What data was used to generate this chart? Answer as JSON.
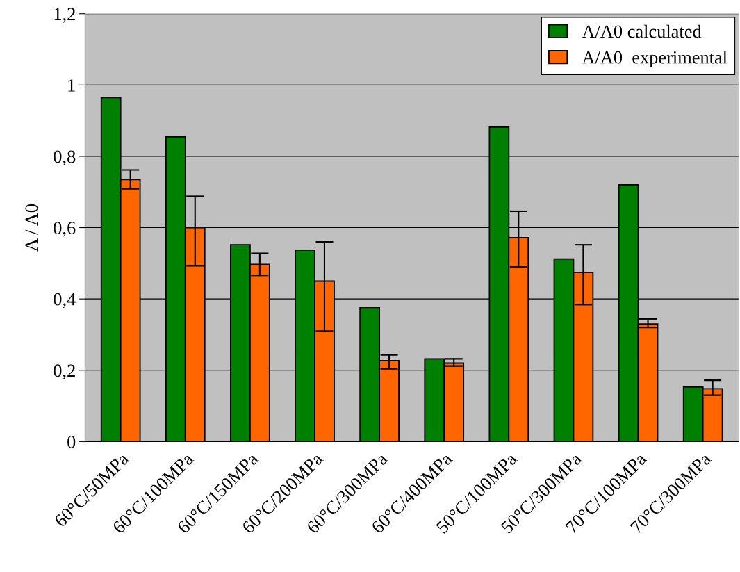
{
  "chart_data": {
    "type": "bar",
    "ylabel": "A / A0",
    "categories": [
      "60°C/50MPa",
      "60°C/100MPa",
      "60°C/150MPa",
      "60°C/200MPa",
      "60°C/300MPa",
      "60°C/400MPa",
      "50°C/100MPa",
      "50°C/300MPa",
      "70°C/100MPa",
      "70°C/300MPa"
    ],
    "series": [
      {
        "name": "A/A0 calculated",
        "color": "#008000",
        "values": [
          0.965,
          0.855,
          0.552,
          0.537,
          0.376,
          0.232,
          0.882,
          0.512,
          0.72,
          0.153
        ]
      },
      {
        "name": "A/A0  experimental",
        "color": "#ff6600",
        "values": [
          0.735,
          0.6,
          0.497,
          0.45,
          0.227,
          0.22,
          0.572,
          0.474,
          0.33,
          0.148
        ],
        "errors": [
          [
            0.709,
            0.762
          ],
          [
            0.493,
            0.688
          ],
          [
            0.466,
            0.528
          ],
          [
            0.31,
            0.56
          ],
          [
            0.204,
            0.243
          ],
          [
            0.212,
            0.232
          ],
          [
            0.49,
            0.646
          ],
          [
            0.384,
            0.552
          ],
          [
            0.32,
            0.344
          ],
          [
            0.13,
            0.172
          ]
        ]
      }
    ],
    "ylim": [
      0,
      1.2
    ],
    "yticks": [
      0,
      {
        "value": 0.2,
        "label": "0,2"
      },
      {
        "value": 0.4,
        "label": "0,4"
      },
      {
        "value": 0.6,
        "label": "0,6"
      },
      {
        "value": 0.8,
        "label": "0,8"
      },
      1,
      {
        "value": 1.2,
        "label": "1,2"
      }
    ],
    "grid": "y",
    "legend": "top right"
  }
}
